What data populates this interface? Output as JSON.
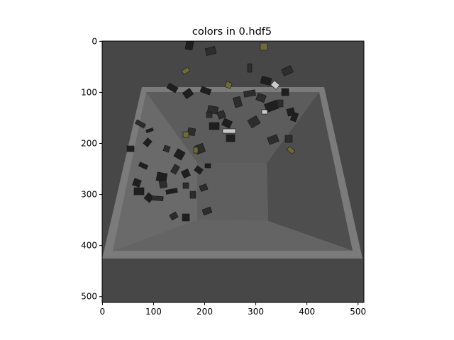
{
  "figure": {
    "title": "colors in 0.hdf5",
    "background": "#ffffff"
  },
  "image": {
    "description_colors": {
      "outer_background": "#474747",
      "bin_rim": "#7b7b7b",
      "bin_floor": "#5e5e5e",
      "wall_left": "#676767",
      "wall_far": "#5a5a5a",
      "wall_right": "#505050",
      "wall_near": "#626262",
      "object_dark": "#1f1f1f",
      "object_mid": "#2d2d2d",
      "object_light": "#c9c9c9",
      "object_yellow": "#6f6a3a"
    }
  },
  "chart_data": {
    "type": "image",
    "title": "colors in 0.hdf5",
    "xlabel": "",
    "ylabel": "",
    "xlim": [
      0,
      511
    ],
    "ylim": [
      511,
      0
    ],
    "xticks": [
      0,
      100,
      200,
      300,
      400,
      500
    ],
    "yticks": [
      0,
      100,
      200,
      300,
      400,
      500
    ],
    "grid": false
  }
}
